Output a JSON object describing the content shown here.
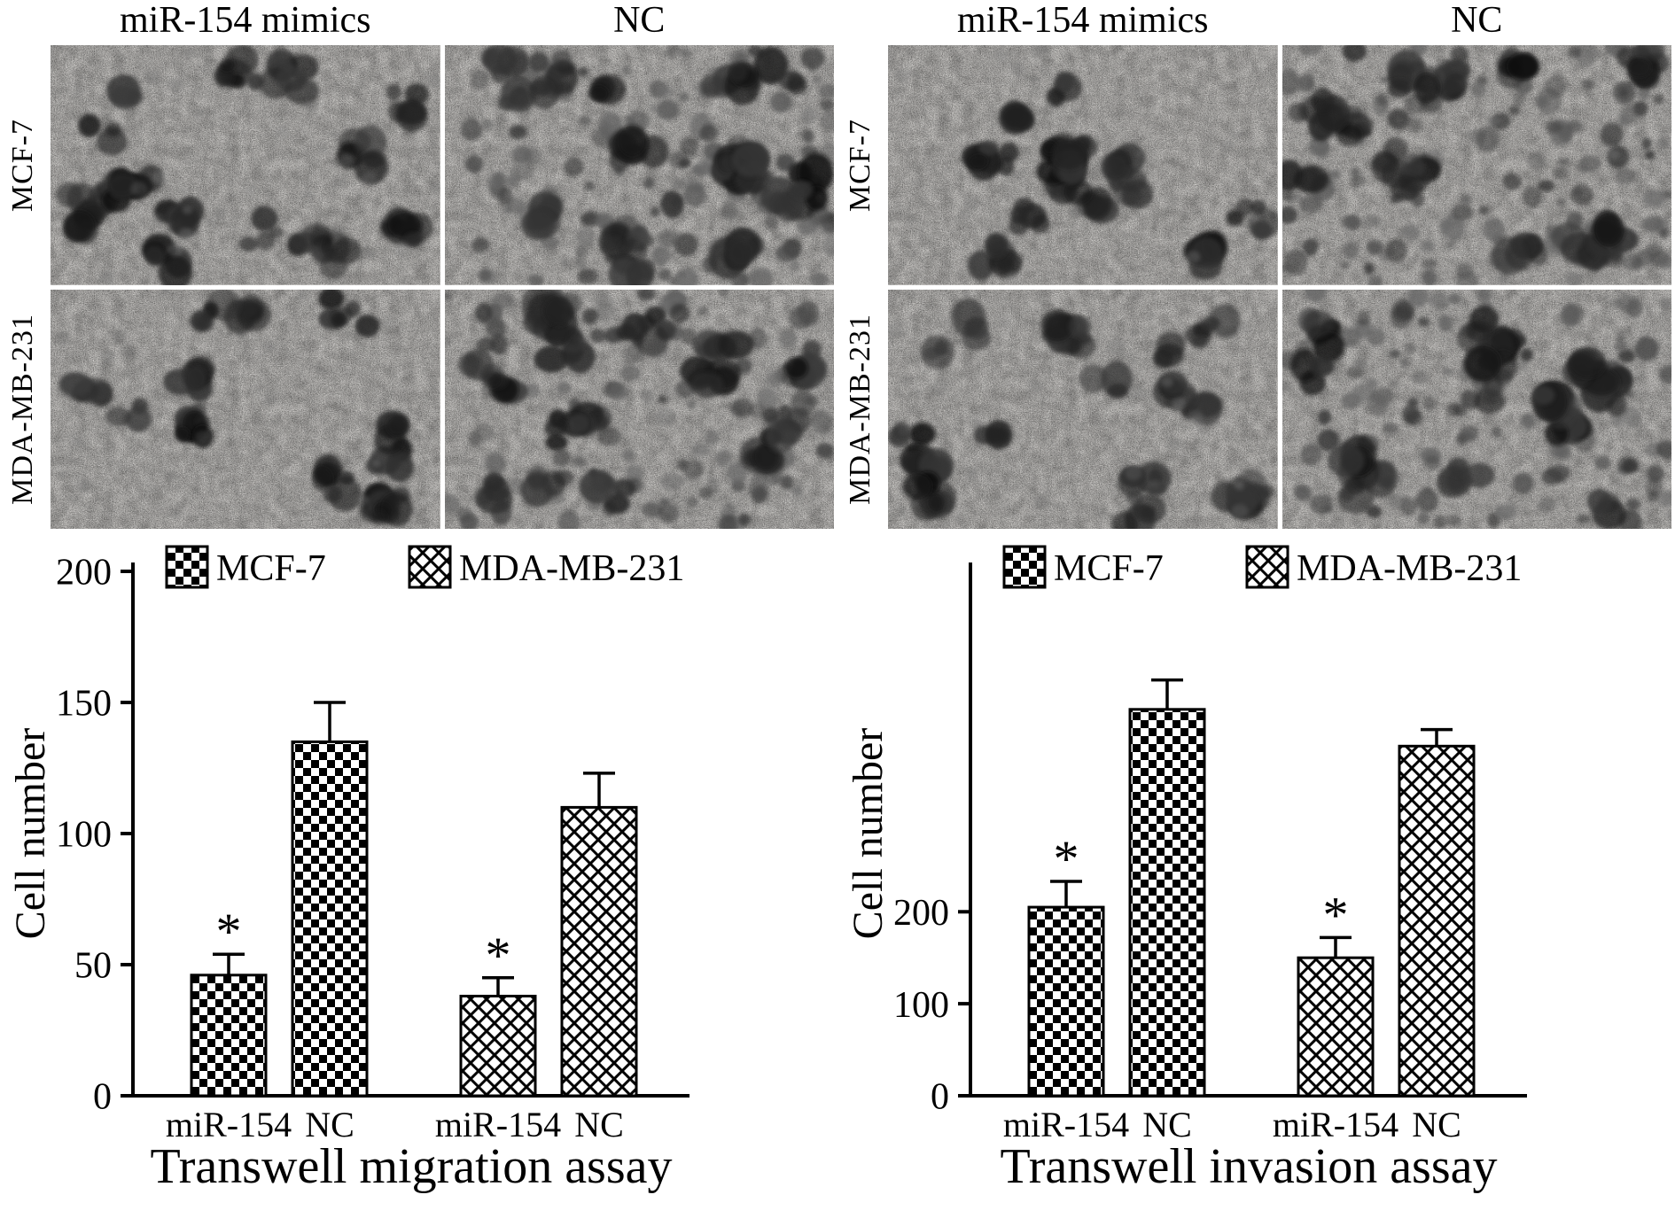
{
  "figure": {
    "background": "#ffffff",
    "ink": "#000000"
  },
  "microscopy": {
    "blocks": [
      {
        "assay": "Transwell migration assay",
        "col_headers": [
          "miR-154 mimics",
          "NC"
        ],
        "row_labels": [
          "MCF-7",
          "MDA-MB-231"
        ],
        "panels": [
          {
            "row": "MCF-7",
            "col": "miR-154 mimics",
            "density": "sparse"
          },
          {
            "row": "MCF-7",
            "col": "NC",
            "density": "dense"
          },
          {
            "row": "MDA-MB-231",
            "col": "miR-154 mimics",
            "density": "sparse"
          },
          {
            "row": "MDA-MB-231",
            "col": "NC",
            "density": "dense"
          }
        ]
      },
      {
        "assay": "Transwell invasion assay",
        "col_headers": [
          "miR-154 mimics",
          "NC"
        ],
        "row_labels": [
          "MCF-7",
          "MDA-MB-231"
        ],
        "panels": [
          {
            "row": "MCF-7",
            "col": "miR-154 mimics",
            "density": "sparse"
          },
          {
            "row": "MCF-7",
            "col": "NC",
            "density": "dense"
          },
          {
            "row": "MDA-MB-231",
            "col": "miR-154 mimics",
            "density": "sparse"
          },
          {
            "row": "MDA-MB-231",
            "col": "NC",
            "density": "dense"
          }
        ]
      }
    ]
  },
  "chart_data": [
    {
      "type": "bar",
      "title": "Transwell migration assay",
      "xlabel": "",
      "ylabel": "Cell number",
      "ylim": [
        0,
        200
      ],
      "yticks": [
        0,
        50,
        100,
        150,
        200
      ],
      "grid": false,
      "legend_position": "top",
      "legend": [
        {
          "label": "MCF-7",
          "pattern": "checker"
        },
        {
          "label": "MDA-MB-231",
          "pattern": "crosshatch"
        }
      ],
      "bars": [
        {
          "group": "MCF-7",
          "category": "miR-154",
          "value": 46,
          "error": 8,
          "significance": "*"
        },
        {
          "group": "MCF-7",
          "category": "NC",
          "value": 135,
          "error": 15,
          "significance": ""
        },
        {
          "group": "MDA-MB-231",
          "category": "miR-154",
          "value": 38,
          "error": 7,
          "significance": "*"
        },
        {
          "group": "MDA-MB-231",
          "category": "NC",
          "value": 110,
          "error": 13,
          "significance": ""
        }
      ]
    },
    {
      "type": "bar",
      "title": "Transwell invasion assay",
      "xlabel": "",
      "ylabel": "Cell number",
      "ylim": [
        0,
        570
      ],
      "yticks": [
        0,
        100,
        200
      ],
      "grid": false,
      "legend_position": "top",
      "legend": [
        {
          "label": "MCF-7",
          "pattern": "checker"
        },
        {
          "label": "MDA-MB-231",
          "pattern": "crosshatch"
        }
      ],
      "bars": [
        {
          "group": "MCF-7",
          "category": "miR-154",
          "value": 205,
          "error": 28,
          "significance": "*"
        },
        {
          "group": "MCF-7",
          "category": "NC",
          "value": 420,
          "error": 32,
          "significance": ""
        },
        {
          "group": "MDA-MB-231",
          "category": "miR-154",
          "value": 150,
          "error": 22,
          "significance": "*"
        },
        {
          "group": "MDA-MB-231",
          "category": "NC",
          "value": 380,
          "error": 18,
          "significance": ""
        }
      ]
    }
  ]
}
